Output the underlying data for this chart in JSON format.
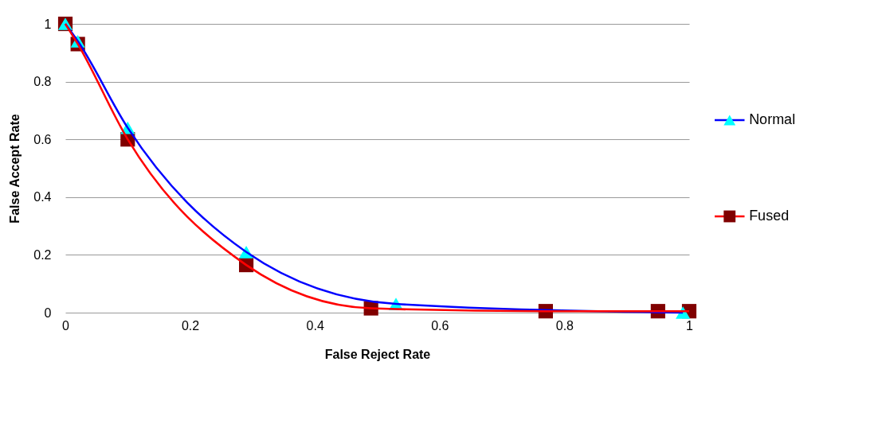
{
  "chart_data": {
    "type": "line",
    "xlabel": "False Reject Rate",
    "ylabel": "False Accept Rate",
    "xlim": [
      0,
      1
    ],
    "xticks": [
      0,
      0.2,
      0.4,
      0.6,
      0.8,
      1
    ],
    "ylim": [
      0,
      1
    ],
    "yticks": [
      0,
      0.2,
      0.4,
      0.6,
      0.8,
      1
    ],
    "grid": "y",
    "legend": "right",
    "line_style": "solid",
    "series": [
      {
        "name": "Normal",
        "color": "#0000ff",
        "marker": "triangle",
        "colors": [
          "#00ffff",
          "#00ffff",
          "#00ffff",
          "#00ffff",
          "#00ffff",
          "#00ffff"
        ],
        "x": [
          0,
          0.02,
          0.1,
          0.29,
          0.53,
          0.99
        ],
        "values": [
          1,
          0.94,
          0.64,
          0.21,
          0.03,
          0
        ]
      },
      {
        "name": "Fused",
        "color": "#ff0000",
        "marker": "square",
        "colors": [
          "#800000",
          "#800000",
          "#800000",
          "#800000",
          "#800000",
          "#800000",
          "#800000",
          "#800000"
        ],
        "x": [
          0,
          0.02,
          0.1,
          0.29,
          0.49,
          0.77,
          0.95,
          1
        ],
        "values": [
          1,
          0.93,
          0.6,
          0.165,
          0.015,
          0.005,
          0.005,
          0.005
        ]
      }
    ]
  }
}
